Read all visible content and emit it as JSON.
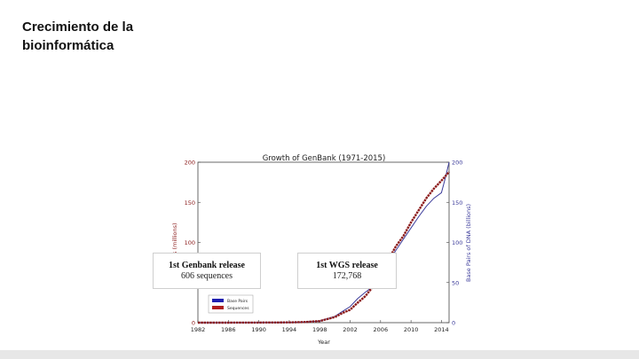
{
  "slide": {
    "title": "Crecimiento de la bioinformática"
  },
  "callouts": [
    {
      "title": "1st Genbank release",
      "detail": "606 sequences"
    },
    {
      "title": "1st WGS release",
      "detail": "172,768"
    }
  ],
  "chart_data": {
    "type": "line",
    "title": "Growth of GenBank (1971-2015)",
    "xlabel": "Year",
    "ylabel_left": "ces (millions)",
    "ylabel_right": "Base Pairs of DNA (billions)",
    "xlim": [
      1982,
      2015
    ],
    "ylim_left": [
      0,
      200
    ],
    "ylim_right": [
      0,
      200
    ],
    "x_ticks": [
      "1982",
      "1986",
      "1990",
      "1994",
      "1998",
      "2002",
      "2006",
      "2010",
      "2014"
    ],
    "x_tick_values": [
      1982,
      1986,
      1990,
      1994,
      1998,
      2002,
      2006,
      2010,
      2014
    ],
    "y_ticks_left": [
      "0",
      "50",
      "100",
      "150",
      "200"
    ],
    "y_ticks_right": [
      "0",
      "50",
      "100",
      "150",
      "200"
    ],
    "y_tick_values": [
      0,
      50,
      100,
      150,
      200
    ],
    "legend": {
      "placement": "bottom-left",
      "entries": [
        "Base Pairs",
        "Sequences"
      ]
    },
    "colors": {
      "base_pairs": "#3b3b9a",
      "sequences": "#8b1a1a"
    },
    "series": [
      {
        "name": "Base Pairs",
        "axis": "right",
        "x": [
          1982,
          1986,
          1990,
          1994,
          1996,
          1998,
          2000,
          2001,
          2002,
          2003,
          2004,
          2005,
          2006,
          2007,
          2008,
          2009,
          2010,
          2011,
          2012,
          2013,
          2014,
          2014.5,
          2015
        ],
        "values": [
          0,
          0,
          0.1,
          0.3,
          0.8,
          2,
          8,
          14,
          20,
          30,
          38,
          45,
          60,
          75,
          90,
          104,
          118,
          132,
          145,
          155,
          162,
          180,
          200
        ]
      },
      {
        "name": "Sequences",
        "axis": "left",
        "x": [
          1982,
          1986,
          1990,
          1994,
          1996,
          1998,
          2000,
          2001,
          2002,
          2003,
          2004,
          2005,
          2006,
          2007,
          2008,
          2009,
          2010,
          2011,
          2012,
          2013,
          2014,
          2015
        ],
        "values": [
          0,
          0,
          0.1,
          0.3,
          0.8,
          2,
          7,
          12,
          16,
          25,
          33,
          45,
          62,
          78,
          95,
          108,
          125,
          140,
          155,
          167,
          177,
          188
        ]
      }
    ]
  }
}
